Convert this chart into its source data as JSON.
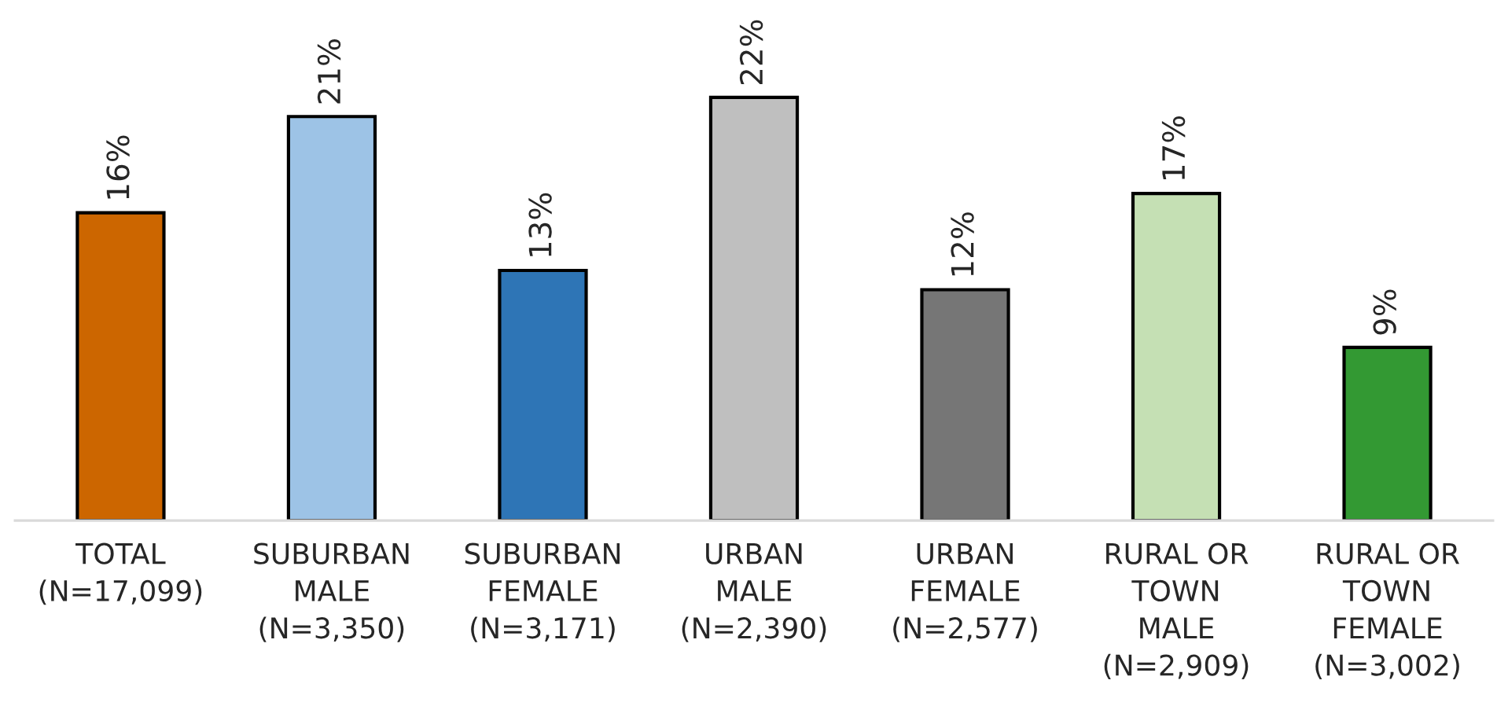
{
  "chart_data": {
    "type": "bar",
    "categories": [
      "TOTAL\n(N=17,099)",
      "SUBURBAN\nMALE\n(N=3,350)",
      "SUBURBAN\nFEMALE\n(N=3,171)",
      "URBAN\nMALE\n(N=2,390)",
      "URBAN\nFEMALE\n(N=2,577)",
      "RURAL OR\nTOWN\nMALE\n(N=2,909)",
      "RURAL OR\nTOWN\nFEMALE\n(N=3,002)"
    ],
    "values": [
      16,
      21,
      13,
      22,
      12,
      17,
      9
    ],
    "value_labels": [
      "16%",
      "21%",
      "13%",
      "22%",
      "12%",
      "17%",
      "9%"
    ],
    "colors": [
      "#cc6600",
      "#9dc3e6",
      "#2e75b6",
      "#bfbfbf",
      "#767676",
      "#c5e0b4",
      "#339933"
    ],
    "tick_labels": "x",
    "grid": false,
    "legend": false
  }
}
